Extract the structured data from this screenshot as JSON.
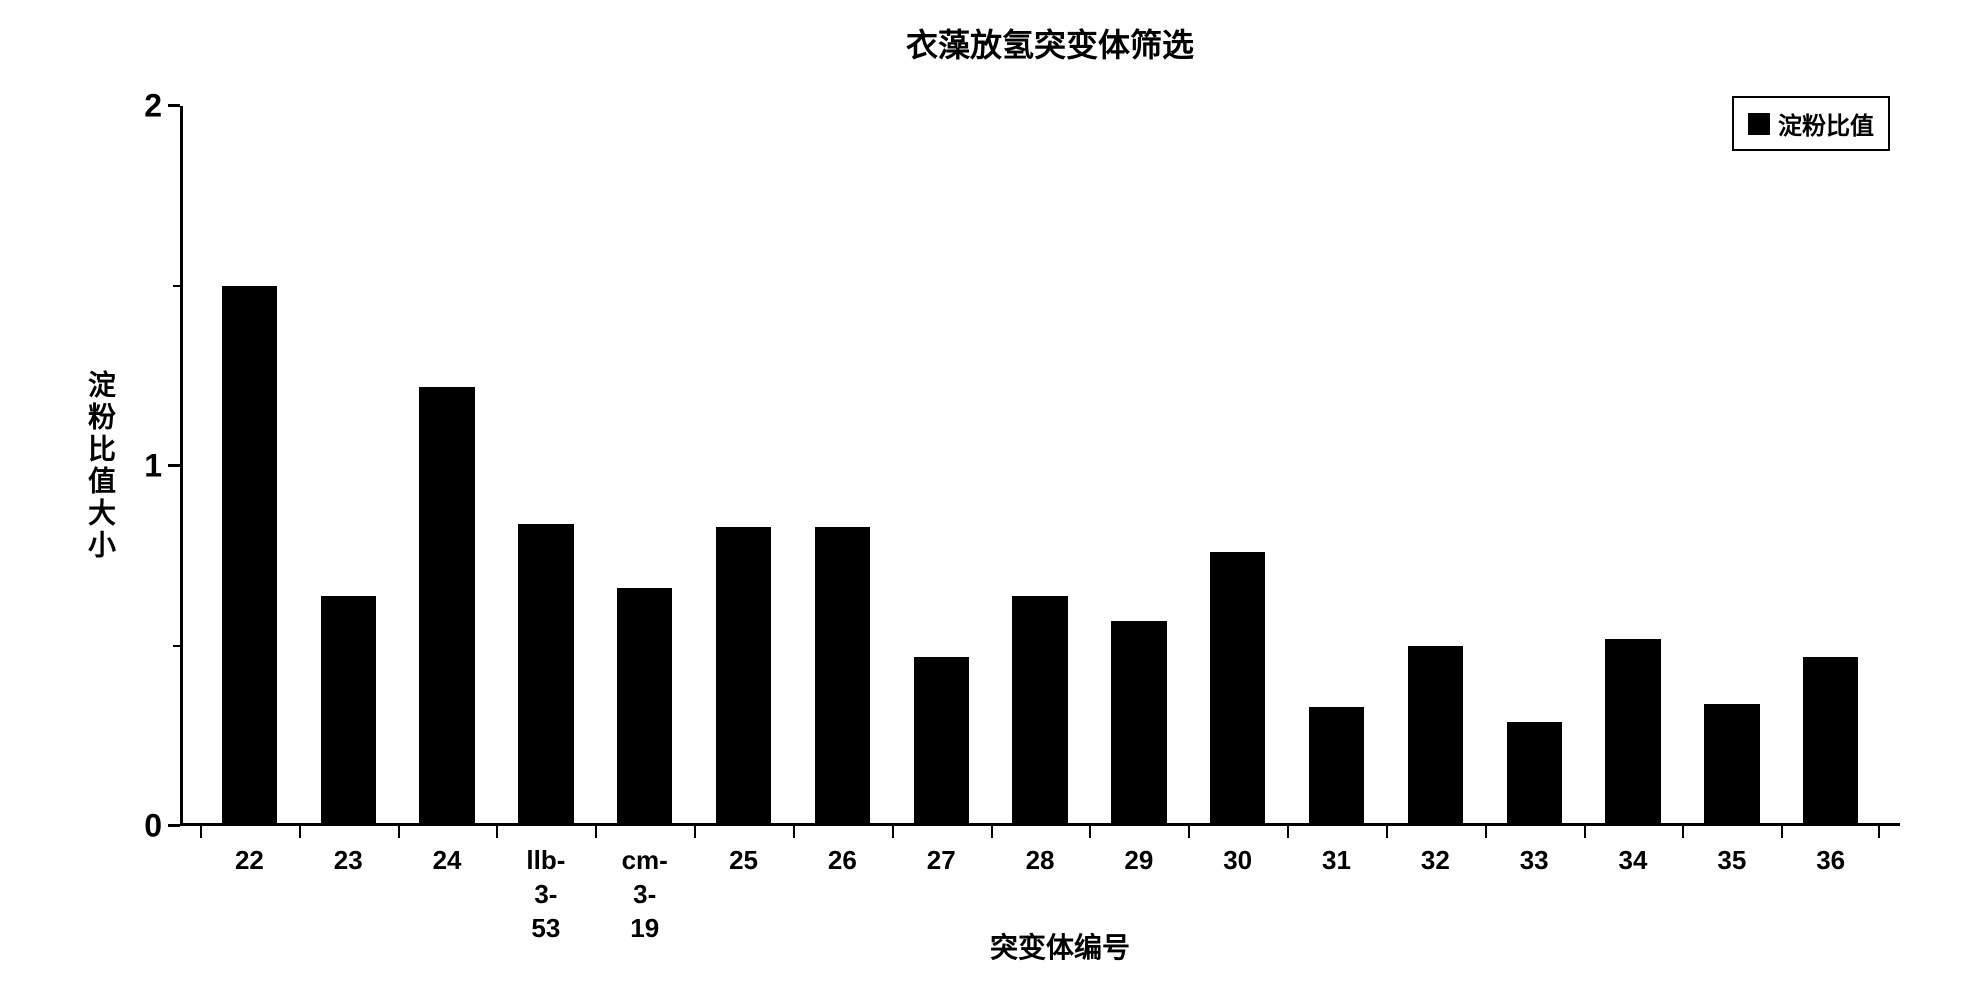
{
  "chart": {
    "type": "bar",
    "title": "衣藻放氢突变体筛选",
    "title_fontsize": 32,
    "y_axis_title": "淀粉比值大小",
    "x_axis_title": "突变体编号",
    "legend_label": "淀粉比值",
    "ylim": [
      0,
      2
    ],
    "y_major_ticks": [
      0,
      1,
      2
    ],
    "y_minor_tick_step": 0.1,
    "background_color": "#ffffff",
    "bar_color": "#000000",
    "axis_color": "#000000",
    "text_color": "#000000",
    "label_fontsize": 28,
    "tick_fontsize": 26,
    "bar_width_ratio": 0.56,
    "categories": [
      "22",
      "23",
      "24",
      "llb-\n3-53",
      "cm-\n3-19",
      "25",
      "26",
      "27",
      "28",
      "29",
      "30",
      "31",
      "32",
      "33",
      "34",
      "35",
      "36"
    ],
    "values": [
      1.5,
      0.64,
      1.22,
      0.84,
      0.66,
      0.83,
      0.83,
      0.47,
      0.64,
      0.57,
      0.76,
      0.33,
      0.5,
      0.29,
      0.52,
      0.34,
      0.47
    ]
  }
}
